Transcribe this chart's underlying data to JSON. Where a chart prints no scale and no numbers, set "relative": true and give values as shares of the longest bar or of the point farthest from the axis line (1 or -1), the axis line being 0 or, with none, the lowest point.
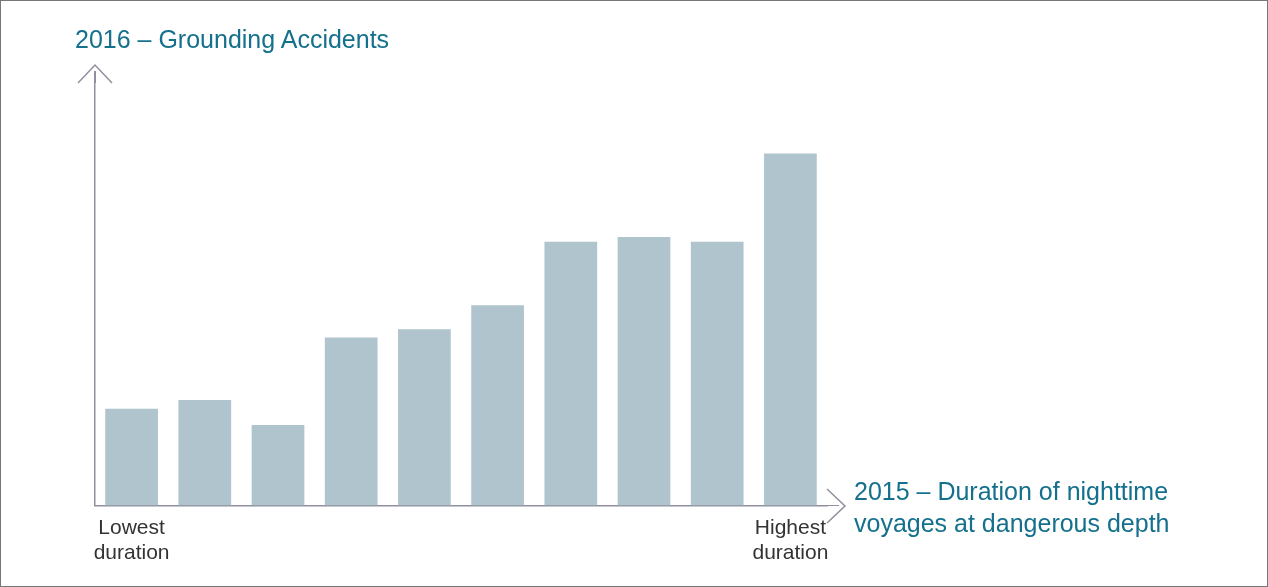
{
  "chart_data": {
    "type": "bar",
    "relative": true,
    "ylabel": "2016 – Grounding Accidents",
    "xlabel": "2015 – Duration of nighttime voyages at dangerous depth",
    "categories": [
      "Lowest duration",
      null,
      null,
      null,
      null,
      null,
      null,
      null,
      null,
      "Highest duration"
    ],
    "values": [
      0.275,
      0.3,
      0.229,
      0.477,
      0.501,
      0.569,
      0.749,
      0.763,
      0.749,
      1
    ],
    "color": "#b0c4ce",
    "grid": false,
    "legend": false
  }
}
